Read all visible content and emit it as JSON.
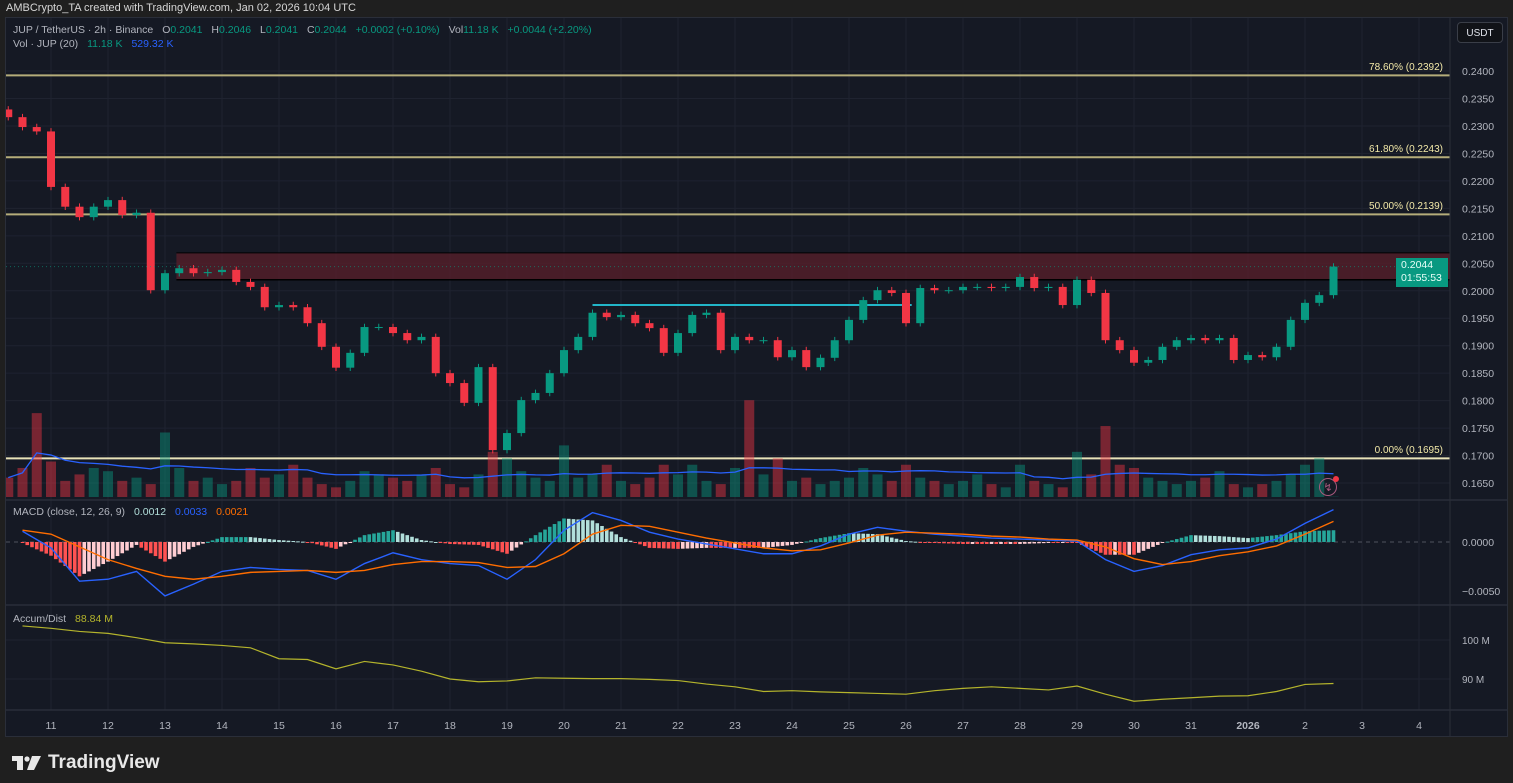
{
  "credit": "AMBCrypto_TA created with TradingView.com, Jan 02, 2026 10:04 UTC",
  "legend": {
    "symbol": "JUP / TetherUS · 2h · Binance",
    "o_label": "O",
    "o": "0.2041",
    "h_label": "H",
    "h": "0.2046",
    "l_label": "L",
    "l": "0.2041",
    "c_label": "C",
    "c": "0.2044",
    "change": "+0.0002 (+0.10%)",
    "vol_label": "Vol",
    "vol": "11.18 K",
    "vol_change": "+0.0044 (+2.20%)",
    "vol_ind": "Vol · JUP (20)",
    "vol_ind_v1": "11.18 K",
    "vol_ind_v2": "529.32 K"
  },
  "currency_button": "USDT",
  "last_price": {
    "price": "0.2044",
    "countdown": "01:55:53"
  },
  "macd_legend": {
    "title": "MACD (close, 12, 26, 9)",
    "hist": "0.0012",
    "macd": "0.0033",
    "signal": "0.0021"
  },
  "ad_legend": {
    "title": "Accum/Dist",
    "value": "88.84 M"
  },
  "colors": {
    "up": "#089981",
    "down": "#f23645",
    "macd": "#2962ff",
    "signal": "#ff6d00",
    "ad": "#b4b42c",
    "fib": "#b5ad7a",
    "fib_zero": "#e8e2b8",
    "zone": "#5a1f2a",
    "hline": "#22b5c8",
    "vol_ma": "#2962ff"
  },
  "footer": {
    "brand": "TradingView"
  },
  "chart_data": {
    "type": "candlestick",
    "interval": "2h",
    "price_axis": {
      "ticks": [
        "0.2400",
        "0.2350",
        "0.2300",
        "0.2250",
        "0.2200",
        "0.2150",
        "0.2100",
        "0.2050",
        "0.2000",
        "0.1950",
        "0.1900",
        "0.1850",
        "0.1800",
        "0.1750",
        "0.1700",
        "0.1650"
      ],
      "ylim": [
        0.1635,
        0.241
      ]
    },
    "time_axis": {
      "ticks": [
        "11",
        "12",
        "13",
        "14",
        "15",
        "16",
        "17",
        "18",
        "19",
        "20",
        "21",
        "22",
        "23",
        "24",
        "25",
        "26",
        "27",
        "28",
        "29",
        "30",
        "31",
        "2026",
        "2",
        "3",
        "4"
      ]
    },
    "macd_axis": {
      "ticks": [
        "0.0000",
        "−0.0050"
      ]
    },
    "ad_axis": {
      "ticks": [
        "100 M",
        "90 M"
      ]
    },
    "fib_levels": [
      {
        "label": "78.60% (0.2392)",
        "price": 0.2392
      },
      {
        "label": "61.80% (0.2243)",
        "price": 0.2243
      },
      {
        "label": "50.00% (0.2139)",
        "price": 0.2139
      },
      {
        "label": "0.00% (0.1695)",
        "price": 0.1695
      }
    ],
    "resistance_zone": {
      "from_date": "Dec 13",
      "top": 0.2069,
      "bottom": 0.202
    },
    "horizontal_line": {
      "price": 0.1974,
      "from_date": "Dec 20",
      "to_date": "Dec 25"
    },
    "days": [
      {
        "date": "Dec 10",
        "close": [
          0.2316,
          0.2298,
          0.229
        ],
        "volume": [
          600,
          900,
          2600
        ],
        "macd": [
          0.0011
        ],
        "signal": [
          0.0012
        ],
        "ad": [
          103.6
        ]
      },
      {
        "date": "Dec 11",
        "close": [
          0.2189,
          0.2153,
          0.2134,
          0.2153
        ],
        "volume": [
          1100,
          500,
          700,
          900
        ],
        "macd": [
          -0.0006,
          -0.004
        ],
        "signal": [
          0.0008,
          -0.0005
        ],
        "ad": [
          103.0,
          102.2
        ]
      },
      {
        "date": "Dec 12",
        "close": [
          0.2165,
          0.2138,
          0.2142,
          0.2001
        ],
        "volume": [
          800,
          500,
          600,
          400
        ],
        "macd": [
          -0.0038,
          -0.003
        ],
        "signal": [
          -0.0018,
          -0.0027
        ],
        "ad": [
          101.7,
          100.6
        ]
      },
      {
        "date": "Dec 13",
        "close": [
          0.2032,
          0.2041,
          0.2032,
          0.2034
        ],
        "volume": [
          2000,
          900,
          500,
          600
        ],
        "macd": [
          -0.0055,
          -0.0043
        ],
        "signal": [
          -0.0035,
          -0.0038
        ],
        "ad": [
          99.3,
          99.0
        ]
      },
      {
        "date": "Dec 14",
        "close": [
          0.2038,
          0.2016,
          0.2007,
          0.197
        ],
        "volume": [
          400,
          500,
          900,
          600
        ],
        "macd": [
          -0.003,
          -0.0026
        ],
        "signal": [
          -0.0035,
          -0.0031
        ],
        "ad": [
          98.6,
          98.0
        ]
      },
      {
        "date": "Dec 15",
        "close": [
          0.1974,
          0.197,
          0.1941,
          0.1898
        ],
        "volume": [
          700,
          1000,
          600,
          400
        ],
        "macd": [
          -0.0028,
          -0.0029
        ],
        "signal": [
          -0.003,
          -0.0029
        ],
        "ad": [
          95.2,
          95.0
        ]
      },
      {
        "date": "Dec 16",
        "close": [
          0.186,
          0.1887,
          0.1934,
          0.1934
        ],
        "volume": [
          300,
          500,
          800,
          700
        ],
        "macd": [
          -0.0038,
          -0.0022
        ],
        "signal": [
          -0.0031,
          -0.0029
        ],
        "ad": [
          92.6,
          94.5
        ]
      },
      {
        "date": "Dec 17",
        "close": [
          0.1923,
          0.191,
          0.1916,
          0.185
        ],
        "volume": [
          600,
          500,
          700,
          900
        ],
        "macd": [
          -0.0011,
          -0.0018
        ],
        "signal": [
          -0.0023,
          -0.002
        ],
        "ad": [
          93.6,
          92.0
        ]
      },
      {
        "date": "Dec 18",
        "close": [
          0.1832,
          0.1796,
          0.1861,
          0.171
        ],
        "volume": [
          400,
          300,
          700,
          1400
        ],
        "macd": [
          -0.0022,
          -0.0024
        ],
        "signal": [
          -0.002,
          -0.0021
        ],
        "ad": [
          90.0,
          89.3
        ]
      },
      {
        "date": "Dec 19",
        "close": [
          0.1741,
          0.1801,
          0.1814,
          0.185
        ],
        "volume": [
          1200,
          800,
          600,
          500
        ],
        "macd": [
          -0.0038,
          -0.0018
        ],
        "signal": [
          -0.0026,
          -0.0025
        ],
        "ad": [
          89.5,
          90.3
        ]
      },
      {
        "date": "Dec 20",
        "close": [
          0.1892,
          0.1916,
          0.196,
          0.1952
        ],
        "volume": [
          1600,
          600,
          700,
          1000
        ],
        "macd": [
          0.0012,
          0.003
        ],
        "signal": [
          -0.0012,
          0.0008
        ],
        "ad": [
          90.2,
          90.1
        ]
      },
      {
        "date": "Dec 21",
        "close": [
          0.1956,
          0.1941,
          0.1932,
          0.1887
        ],
        "volume": [
          500,
          400,
          600,
          1000
        ],
        "macd": [
          0.0022,
          0.001
        ],
        "signal": [
          0.0017,
          0.0016
        ],
        "ad": [
          90.1,
          89.9
        ]
      },
      {
        "date": "Dec 22",
        "close": [
          0.1923,
          0.1956,
          0.196,
          0.1892
        ],
        "volume": [
          700,
          1000,
          500,
          400
        ],
        "macd": [
          0.0003,
          -0.0002
        ],
        "signal": [
          0.001,
          0.0004
        ],
        "ad": [
          89.6,
          88.7
        ]
      },
      {
        "date": "Dec 23",
        "close": [
          0.1916,
          0.191,
          0.191,
          0.1879
        ],
        "volume": [
          900,
          3000,
          700,
          1200
        ],
        "macd": [
          -0.0007,
          -0.0012
        ],
        "signal": [
          -0.0001,
          -0.0006
        ],
        "ad": [
          88.0,
          86.8
        ]
      },
      {
        "date": "Dec 24",
        "close": [
          0.1892,
          0.1861,
          0.1878,
          0.191
        ],
        "volume": [
          500,
          600,
          400,
          500
        ],
        "macd": [
          -0.0012,
          -0.0004
        ],
        "signal": [
          -0.0009,
          -0.0008
        ],
        "ad": [
          87.0,
          86.7
        ]
      },
      {
        "date": "Dec 25",
        "close": [
          0.1947,
          0.1983,
          0.2001,
          0.1996
        ],
        "volume": [
          600,
          900,
          700,
          500
        ],
        "macd": [
          0.0008,
          0.0015
        ],
        "signal": [
          -0.0001,
          0.0007
        ],
        "ad": [
          86.5,
          86.3
        ]
      },
      {
        "date": "Dec 26",
        "close": [
          0.1941,
          0.2005,
          0.2001,
          0.2001
        ],
        "volume": [
          1000,
          600,
          500,
          400
        ],
        "macd": [
          0.0011,
          0.0008
        ],
        "signal": [
          0.001,
          0.0009
        ],
        "ad": [
          86.1,
          87.0
        ]
      },
      {
        "date": "Dec 27",
        "close": [
          0.2007,
          0.2007,
          0.2005,
          0.2007
        ],
        "volume": [
          500,
          700,
          400,
          300
        ],
        "macd": [
          0.0006,
          0.0004
        ],
        "signal": [
          0.0008,
          0.0006
        ],
        "ad": [
          87.6,
          88.0
        ]
      },
      {
        "date": "Dec 28",
        "close": [
          0.2025,
          0.2005,
          0.2007,
          0.1974
        ],
        "volume": [
          1000,
          500,
          400,
          300
        ],
        "macd": [
          0.0003,
          0.0002
        ],
        "signal": [
          0.0005,
          0.0003
        ],
        "ad": [
          87.6,
          87.2
        ]
      },
      {
        "date": "Dec 29",
        "close": [
          0.202,
          0.1996,
          0.191,
          0.1892
        ],
        "volume": [
          1400,
          700,
          2200,
          1000
        ],
        "macd": [
          0.0001,
          -0.0018
        ],
        "signal": [
          0.0002,
          -0.0005
        ],
        "ad": [
          88.2,
          86.1
        ]
      },
      {
        "date": "Dec 30",
        "close": [
          0.1869,
          0.1874,
          0.1898,
          0.191
        ],
        "volume": [
          900,
          600,
          500,
          400
        ],
        "macd": [
          -0.003,
          -0.0024
        ],
        "signal": [
          -0.0017,
          -0.0023
        ],
        "ad": [
          84.3,
          84.8
        ]
      },
      {
        "date": "Dec 31",
        "close": [
          0.1914,
          0.191,
          0.1914,
          0.1874
        ],
        "volume": [
          500,
          600,
          800,
          400
        ],
        "macd": [
          -0.0013,
          -0.0008
        ],
        "signal": [
          -0.002,
          -0.0014
        ],
        "ad": [
          85.2,
          85.6
        ]
      },
      {
        "date": "Jan 1",
        "close": [
          0.1883,
          0.1879,
          0.1898,
          0.1947
        ],
        "volume": [
          300,
          400,
          500,
          700
        ],
        "macd": [
          -0.0006,
          0.0003
        ],
        "signal": [
          -0.001,
          -0.0004
        ],
        "ad": [
          85.7,
          86.8
        ]
      },
      {
        "date": "Jan 2",
        "close": [
          0.1978,
          0.1992,
          0.2044
        ],
        "volume": [
          1000,
          1200,
          11.18
        ],
        "macd": [
          0.0019,
          0.0033
        ],
        "signal": [
          0.0008,
          0.0021
        ],
        "ad": [
          88.6,
          88.84
        ]
      }
    ]
  }
}
